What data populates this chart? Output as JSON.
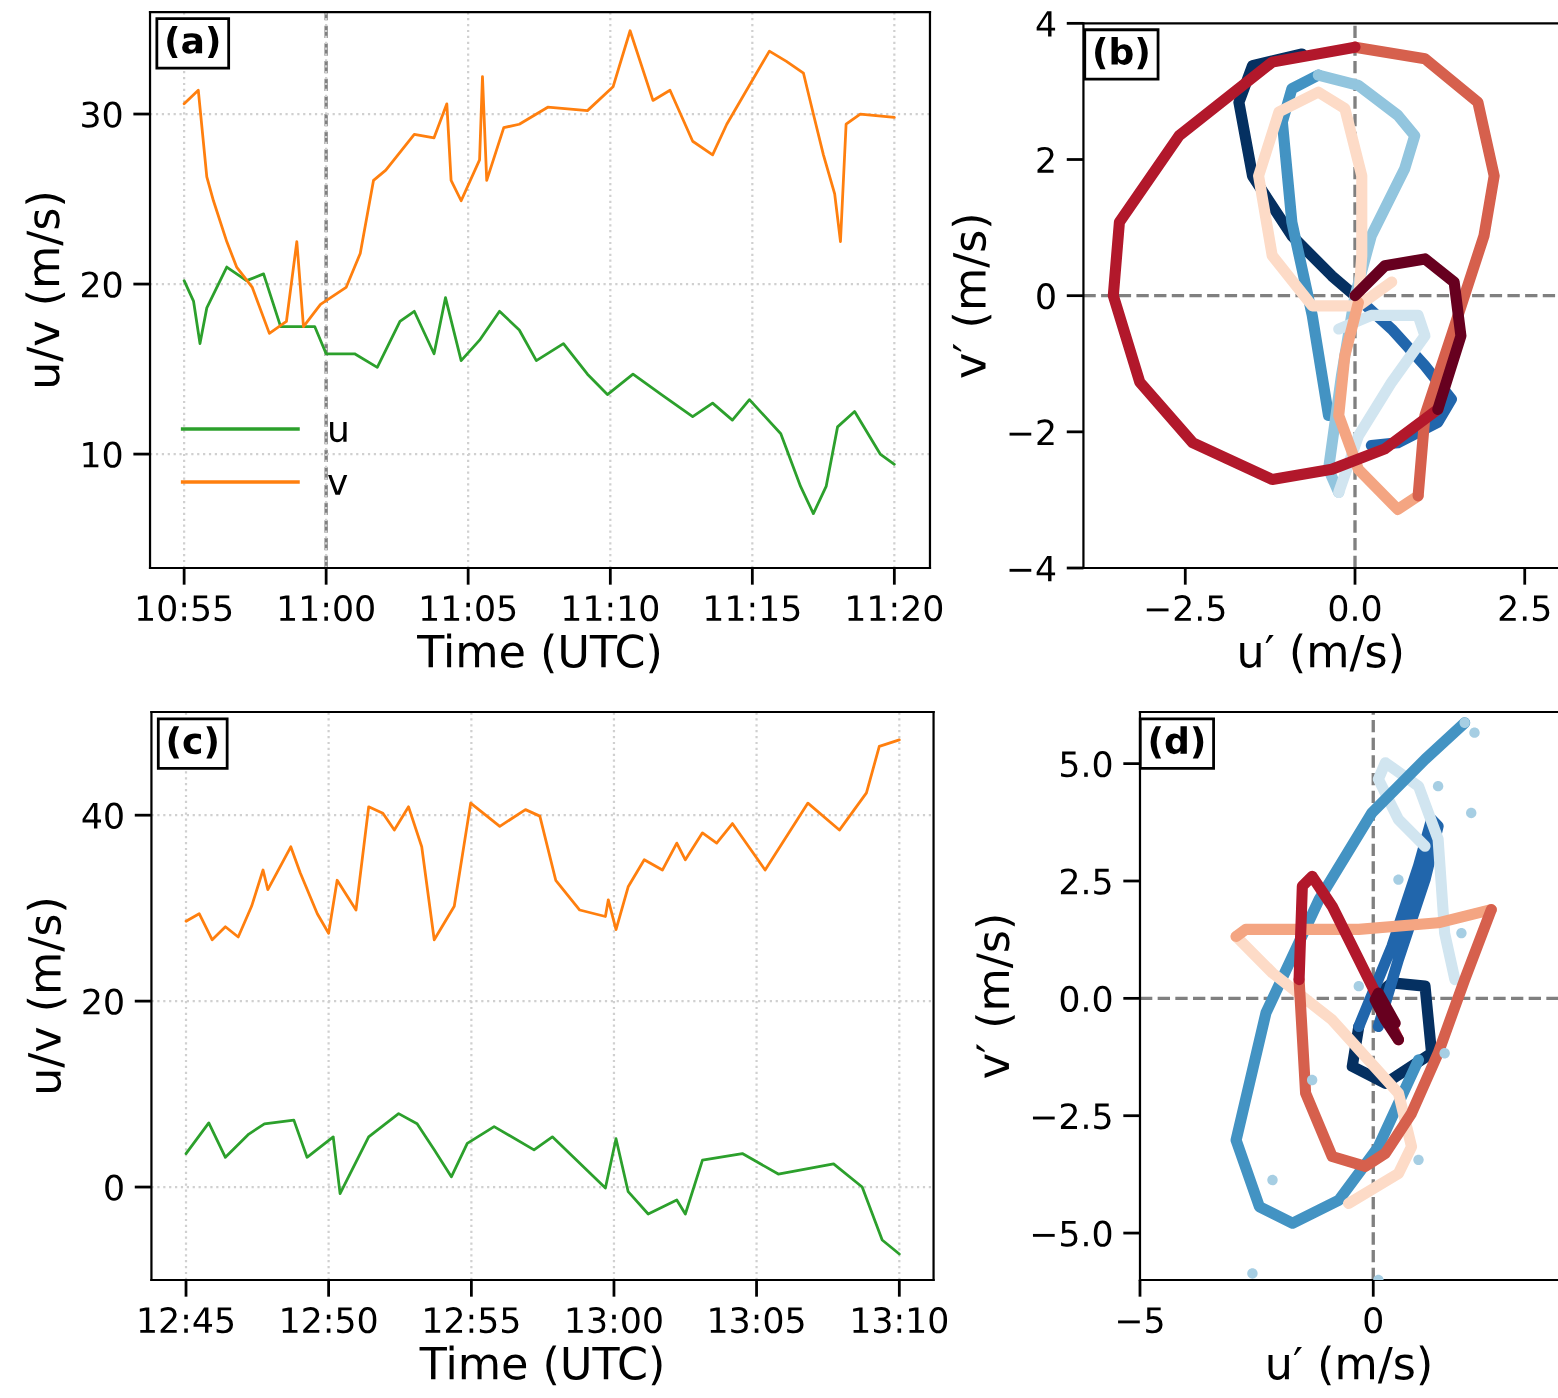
{
  "chart_data": [
    {
      "type": "line",
      "xlabel": "Time (UTC)",
      "ylabel": "u/v (m/s)",
      "annotations": [
        "(a)"
      ],
      "grid": true,
      "legend": "lower left",
      "xlim": [
        10.8967,
        11.3542
      ],
      "ylim": [
        3.3,
        36.0
      ],
      "xticks": [
        {
          "value": 10.9167,
          "label": "10:55"
        },
        {
          "value": 11.0,
          "label": "11:00"
        },
        {
          "value": 11.0833,
          "label": "11:05"
        },
        {
          "value": 11.1667,
          "label": "11:10"
        },
        {
          "value": 11.25,
          "label": "11:15"
        },
        {
          "value": 11.3333,
          "label": "11:20"
        }
      ],
      "yticks": [
        10,
        20,
        30
      ],
      "ref_lines": [
        {
          "axis": "x",
          "value": 11.0,
          "color": "#808080",
          "line_style": "dashed"
        }
      ],
      "series": [
        {
          "name": "u",
          "color": "#2ca02c",
          "x": [
            10.9167,
            10.9222,
            10.926,
            10.93,
            10.9417,
            10.9533,
            10.9633,
            10.9733,
            10.9933,
            11.0,
            11.0167,
            11.03,
            11.0433,
            11.0517,
            11.0633,
            11.07,
            11.0792,
            11.09,
            11.1017,
            11.1133,
            11.1233,
            11.1392,
            11.1533,
            11.165,
            11.18,
            11.1967,
            11.215,
            11.2267,
            11.2383,
            11.2483,
            11.2667,
            11.2783,
            11.2858,
            11.2933,
            11.3,
            11.31,
            11.325,
            11.3333
          ],
          "values": [
            20.2,
            19.0,
            16.5,
            18.6,
            21.0,
            20.2,
            20.6,
            17.5,
            17.5,
            15.9,
            15.9,
            15.1,
            17.8,
            18.4,
            15.9,
            19.2,
            15.5,
            16.7,
            18.4,
            17.3,
            15.5,
            16.5,
            14.7,
            13.5,
            14.7,
            13.5,
            12.2,
            13.0,
            12.0,
            13.2,
            11.2,
            8.1,
            6.5,
            8.1,
            11.6,
            12.5,
            10.0,
            9.4
          ]
        },
        {
          "name": "v",
          "color": "#ff7f0e",
          "x": [
            10.9167,
            10.925,
            10.93,
            10.9339,
            10.9417,
            10.9475,
            10.9567,
            10.9667,
            10.9767,
            10.9828,
            10.9867,
            10.9967,
            11.0117,
            11.02,
            11.0278,
            11.035,
            11.0517,
            11.0633,
            11.0708,
            11.0733,
            11.0792,
            11.09,
            11.0917,
            11.0942,
            11.1042,
            11.1133,
            11.13,
            11.1533,
            11.1683,
            11.1783,
            11.1917,
            11.2017,
            11.215,
            11.2267,
            11.235,
            11.26,
            11.27,
            11.28,
            11.2858,
            11.2917,
            11.2983,
            11.3017,
            11.305,
            11.3133,
            11.3333
          ],
          "values": [
            30.6,
            31.4,
            26.3,
            24.9,
            22.5,
            21.0,
            19.8,
            17.1,
            17.8,
            22.5,
            17.5,
            18.8,
            19.8,
            21.8,
            26.1,
            26.7,
            28.8,
            28.6,
            30.6,
            26.1,
            24.9,
            27.3,
            32.2,
            26.1,
            29.2,
            29.4,
            30.4,
            30.2,
            31.6,
            34.9,
            30.8,
            31.4,
            28.4,
            27.6,
            29.4,
            33.7,
            33.1,
            32.4,
            30.0,
            27.6,
            25.3,
            22.5,
            29.4,
            30.0,
            29.8
          ]
        }
      ]
    },
    {
      "type": "line",
      "xlabel": "u′ (m/s)",
      "ylabel": "v′ (m/s)",
      "annotations": [
        "(b)"
      ],
      "xlim": [
        -4,
        2.99
      ],
      "ylim": [
        -4,
        4
      ],
      "xticks": [
        -2.5,
        {
          "value": 0,
          "label": "0.0"
        },
        2.5
      ],
      "yticks": [
        -4,
        -2,
        0,
        2,
        4
      ],
      "ref_lines": [
        {
          "axis": "x",
          "value": 0,
          "color": "#808080",
          "line_style": "dashed"
        },
        {
          "axis": "y",
          "value": 0,
          "color": "#808080",
          "line_style": "dashed"
        }
      ],
      "series": [
        {
          "color": "#053061",
          "x": [
            -0.78,
            -1.51,
            -1.71,
            -1.51,
            -0.93,
            -0.34,
            0.0
          ],
          "values": [
            3.55,
            3.38,
            2.84,
            1.76,
            0.88,
            0.29,
            0.0
          ]
        },
        {
          "color": "#2166ac",
          "x": [
            0.0,
            0.54,
            1.03,
            1.42,
            1.22,
            0.63,
            0.24
          ],
          "values": [
            0.0,
            -0.49,
            -1.03,
            -1.52,
            -1.86,
            -2.16,
            -2.2
          ]
        },
        {
          "color": "#4393c3",
          "x": [
            -0.39,
            -0.63,
            -0.93,
            -1.07,
            -0.93,
            -0.54
          ],
          "values": [
            -1.76,
            -0.29,
            1.08,
            2.55,
            3.04,
            3.24
          ]
        },
        {
          "color": "#92c5de",
          "x": [
            -0.54,
            0.05,
            0.63,
            0.88,
            0.73,
            0.24,
            0.0,
            -0.2,
            -0.39,
            -0.24
          ],
          "values": [
            3.24,
            3.09,
            2.65,
            2.35,
            1.86,
            0.88,
            0.0,
            -1.18,
            -2.55,
            -2.89
          ]
        },
        {
          "color": "#d1e5f0",
          "x": [
            -0.24,
            0.05,
            0.54,
            1.03,
            0.93,
            0.24,
            -0.24
          ],
          "values": [
            -2.89,
            -2.06,
            -1.27,
            -0.59,
            -0.29,
            -0.29,
            -0.49
          ]
        },
        {
          "color": "#fddbc7",
          "x": [
            0.54,
            0.05,
            -0.63,
            -1.22,
            -1.42,
            -1.12,
            -0.54,
            -0.15,
            0.1,
            0.1,
            0.05
          ],
          "values": [
            0.2,
            -0.15,
            -0.15,
            0.59,
            1.76,
            2.7,
            2.99,
            2.75,
            1.76,
            0.59,
            -0.1
          ]
        },
        {
          "color": "#f4a582",
          "x": [
            0.05,
            -0.15,
            -0.24,
            0.05,
            0.63,
            0.93
          ],
          "values": [
            -0.1,
            -0.88,
            -1.76,
            -2.55,
            -3.14,
            -2.94
          ]
        },
        {
          "color": "#d6604d",
          "x": [
            0.93,
            1.03,
            1.42,
            1.9,
            2.05,
            1.81,
            1.03,
            0.0
          ],
          "values": [
            -2.94,
            -1.76,
            -0.59,
            0.88,
            1.76,
            2.84,
            3.48,
            3.65
          ]
        },
        {
          "color": "#b2182b",
          "x": [
            0.0,
            -1.22,
            -2.59,
            -3.47,
            -3.56,
            -3.17,
            -2.39,
            -1.22,
            -0.34,
            0.44,
            1.22
          ],
          "values": [
            3.65,
            3.43,
            2.35,
            1.08,
            0.0,
            -1.27,
            -2.16,
            -2.7,
            -2.55,
            -2.25,
            -1.67
          ]
        },
        {
          "color": "#67001f",
          "x": [
            1.22,
            1.56,
            1.46,
            1.03,
            0.44,
            0.0
          ],
          "values": [
            -1.67,
            -0.59,
            0.2,
            0.54,
            0.44,
            0.0
          ]
        }
      ]
    },
    {
      "type": "line",
      "xlabel": "Time (UTC)",
      "ylabel": "u/v (m/s)",
      "annotations": [
        "(c)"
      ],
      "grid": true,
      "xlim": [
        12.7298,
        13.1867
      ],
      "ylim": [
        -10.0,
        51.1
      ],
      "xticks": [
        {
          "value": 12.75,
          "label": "12:45"
        },
        {
          "value": 12.8333,
          "label": "12:50"
        },
        {
          "value": 12.9167,
          "label": "12:55"
        },
        {
          "value": 13.0,
          "label": "13:00"
        },
        {
          "value": 13.0833,
          "label": "13:05"
        },
        {
          "value": 13.1667,
          "label": "13:10"
        }
      ],
      "yticks": [
        0,
        20,
        40
      ],
      "series": [
        {
          "color": "#2ca02c",
          "x": [
            12.75,
            12.7633,
            12.773,
            12.7867,
            12.7958,
            12.813,
            12.8207,
            12.836,
            12.84,
            12.8567,
            12.8742,
            12.885,
            12.895,
            12.905,
            12.9143,
            12.93,
            12.9533,
            12.964,
            12.995,
            13.0012,
            13.0083,
            13.02,
            13.0367,
            13.0417,
            13.0517,
            13.075,
            13.096,
            13.1283,
            13.145,
            13.1567,
            13.1667
          ],
          "values": [
            3.6,
            6.9,
            3.2,
            5.7,
            6.8,
            7.2,
            3.2,
            5.4,
            -0.7,
            5.4,
            7.9,
            6.8,
            4.0,
            1.1,
            4.7,
            6.5,
            4.0,
            5.4,
            -0.1,
            5.2,
            -0.5,
            -2.9,
            -1.4,
            -2.9,
            2.9,
            3.6,
            1.4,
            2.5,
            0.0,
            -5.7,
            -7.2
          ]
        },
        {
          "color": "#ff7f0e",
          "x": [
            12.75,
            12.7577,
            12.7653,
            12.773,
            12.7805,
            12.7883,
            12.795,
            12.7978,
            12.8112,
            12.8167,
            12.8267,
            12.8333,
            12.8383,
            12.8493,
            12.8567,
            12.865,
            12.8717,
            12.88,
            12.8877,
            12.895,
            12.9067,
            12.9163,
            12.9333,
            12.9483,
            12.9567,
            12.966,
            12.98,
            12.995,
            12.9967,
            13.0012,
            13.0083,
            13.0177,
            13.0283,
            13.0367,
            13.0417,
            13.0517,
            13.06,
            13.0692,
            13.0883,
            13.1133,
            13.1317,
            13.1475,
            13.155,
            13.1667
          ],
          "values": [
            28.6,
            29.4,
            26.6,
            28.0,
            26.9,
            30.2,
            34.1,
            32.0,
            36.6,
            33.8,
            29.4,
            27.3,
            33.0,
            29.8,
            40.9,
            40.2,
            38.4,
            40.9,
            36.6,
            26.6,
            30.2,
            41.3,
            38.8,
            40.6,
            39.9,
            33.0,
            29.8,
            29.1,
            30.9,
            27.7,
            32.3,
            35.2,
            34.1,
            37.0,
            35.2,
            38.1,
            37.0,
            39.1,
            34.1,
            41.3,
            38.4,
            42.4,
            47.4,
            48.1
          ]
        }
      ]
    },
    {
      "type": "line",
      "xlabel": "u′ (m/s)",
      "ylabel": "v′ (m/s)",
      "annotations": [
        "(d)"
      ],
      "xlim": [
        -5,
        3.96
      ],
      "ylim": [
        -6.0,
        6.1
      ],
      "xticks": [
        -5,
        0
      ],
      "yticks": [
        {
          "value": -5,
          "label": "−5.0"
        },
        -2.5,
        {
          "value": 0,
          "label": "0.0"
        },
        2.5,
        {
          "value": 5,
          "label": "5.0"
        }
      ],
      "ref_lines": [
        {
          "axis": "x",
          "value": 0,
          "color": "#808080",
          "line_style": "dashed"
        },
        {
          "axis": "y",
          "value": 0,
          "color": "#808080",
          "line_style": "dashed"
        }
      ],
      "series": [
        {
          "type": "scatter",
          "marker": "circle",
          "color": "#a6cee3",
          "x": [
            -2.59,
            -2.16,
            -1.31,
            -0.31,
            0.54,
            1.39,
            1.96,
            2.17,
            2.1,
            1.89,
            1.53,
            0.97,
            0.11
          ],
          "values": [
            -5.86,
            -3.87,
            -1.74,
            0.26,
            2.53,
            4.52,
            5.87,
            5.66,
            3.95,
            1.39,
            -1.17,
            -3.44,
            -6.0
          ]
        },
        {
          "color": "#053061",
          "x": [
            0.0,
            0.4,
            1.11,
            1.25,
            0.26,
            -0.45,
            -0.31
          ],
          "values": [
            0.0,
            0.33,
            0.26,
            -1.17,
            -1.81,
            -1.45,
            -0.6
          ]
        },
        {
          "color": "#2166ac",
          "x": [
            -0.31,
            0.4,
            0.97,
            1.25,
            1.39,
            1.11,
            0.54,
            0.11
          ],
          "values": [
            -0.6,
            1.11,
            2.82,
            3.81,
            3.67,
            2.53,
            0.83,
            -0.6
          ]
        },
        {
          "color": "#d1e5f0",
          "x": [
            1.11,
            0.54,
            0.11,
            0.26,
            0.97,
            1.39,
            1.53,
            1.75
          ],
          "values": [
            3.24,
            3.81,
            4.67,
            5.02,
            4.52,
            3.39,
            1.39,
            0.4
          ]
        },
        {
          "color": "#4393c3",
          "x": [
            1.96,
            1.11,
            -0.03,
            -1.16,
            -2.3,
            -2.94,
            -2.44,
            -1.73,
            -0.74,
            0.11,
            0.97
          ],
          "values": [
            5.87,
            5.09,
            3.95,
            2.11,
            -0.31,
            -3.02,
            -4.44,
            -4.79,
            -4.3,
            -3.16,
            -1.31
          ]
        },
        {
          "color": "#fddbc7",
          "x": [
            -0.53,
            0.54,
            0.82,
            0.54,
            -0.88,
            -2.16,
            -2.94
          ],
          "values": [
            -4.37,
            -3.73,
            -3.16,
            -2.02,
            -0.46,
            0.54,
            1.32
          ]
        },
        {
          "color": "#f4a582",
          "x": [
            -2.94,
            -2.73,
            -0.31,
            1.39,
            2.53
          ],
          "values": [
            1.32,
            1.47,
            1.47,
            1.61,
            1.89
          ]
        },
        {
          "color": "#d6604d",
          "x": [
            2.53,
            1.96,
            1.39,
            0.82,
            0.26,
            -0.17,
            -0.88,
            -1.45,
            -1.59
          ],
          "values": [
            1.89,
            0.4,
            -1.17,
            -2.45,
            -3.3,
            -3.58,
            -3.37,
            -2.02,
            0.4
          ]
        },
        {
          "color": "#b2182b",
          "x": [
            -1.59,
            -1.52,
            -1.31,
            -0.88,
            -0.31,
            0.26,
            0.54
          ],
          "values": [
            0.4,
            2.39,
            2.6,
            1.96,
            0.83,
            -0.31,
            -0.88
          ]
        },
        {
          "color": "#67001f",
          "x": [
            0.54,
            0.26,
            0.04,
            0.11,
            0.47
          ],
          "values": [
            -0.88,
            -0.46,
            -0.03,
            0.11,
            -0.53
          ]
        }
      ]
    }
  ]
}
